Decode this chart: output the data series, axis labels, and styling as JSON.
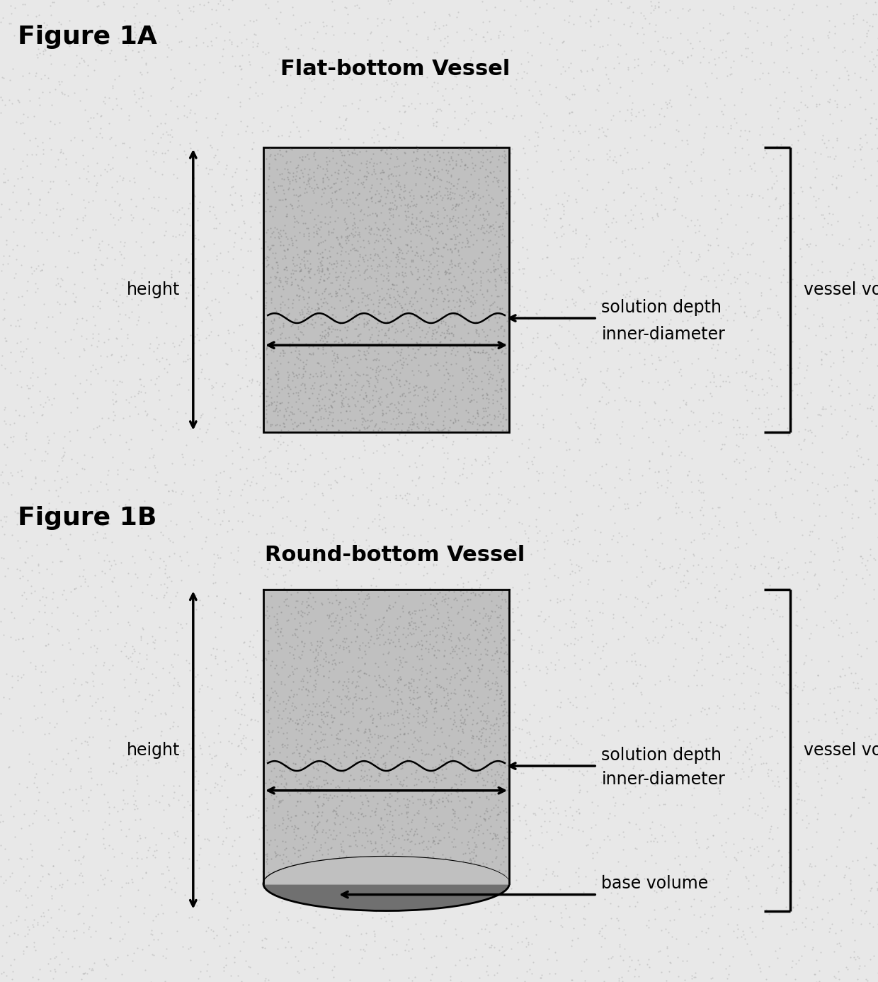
{
  "bg_color": "#e8e8e8",
  "fig_width": 12.4,
  "fig_height": 13.86,
  "fig1a_label": "Figure 1A",
  "fig1a_title": "Flat-bottom Vessel",
  "fig1b_label": "Figure 1B",
  "fig1b_title": "Round-bottom Vessel",
  "vessel_fill": "#c0c0c0",
  "vessel_edge": "#000000",
  "base_fill": "#707070",
  "label_height": "height",
  "label_solution_depth": "solution depth",
  "label_inner_diameter": "inner-diameter",
  "label_vessel_volume": "vessel volume",
  "label_base_volume": "base volume",
  "text_color": "#000000",
  "font_size_fig_label": 26,
  "font_size_title": 22,
  "font_size_annotation": 17
}
